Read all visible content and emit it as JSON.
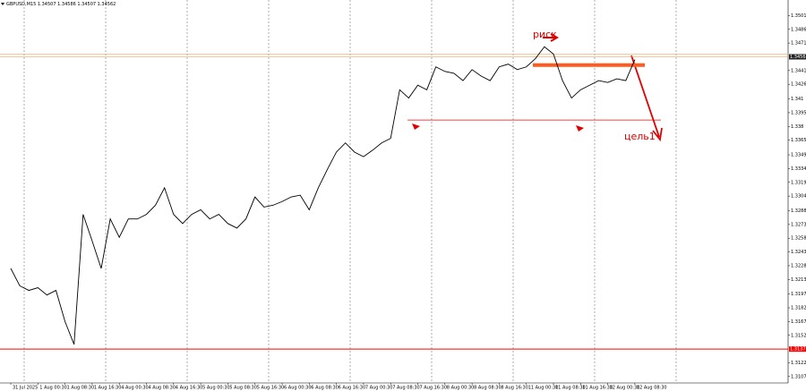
{
  "chart_data": {
    "type": "line",
    "title": "GBPUSD,M15  1.34507 1.34586 1.34507 1.34562",
    "categories": [
      "31 Jul 2025",
      null,
      null,
      "1 Aug 00:30",
      null,
      null,
      "1 Aug 08:30",
      null,
      null,
      "1 Aug 16:30",
      null,
      null,
      "4 Aug 00:30",
      null,
      null,
      "4 Aug 08:30",
      null,
      null,
      "4 Aug 16:30",
      null,
      null,
      "5 Aug 00:30",
      null,
      null,
      "5 Aug 08:30",
      null,
      null,
      "5 Aug 16:30",
      null,
      null,
      "6 Aug 00:30",
      null,
      null,
      "6 Aug 08:30",
      null,
      null,
      "6 Aug 16:30",
      null,
      null,
      "7 Aug 00:30",
      null,
      null,
      "7 Aug 08:30",
      null,
      null,
      "7 Aug 16:30",
      null,
      null,
      "8 Aug 00:30",
      null,
      null,
      "8 Aug 08:30",
      null,
      null,
      "8 Aug 16:30",
      null,
      null,
      "11 Aug 00:30",
      null,
      null,
      "11 Aug 08:30",
      null,
      null,
      "11 Aug 16:30",
      null,
      null,
      "12 Aug 00:30",
      null,
      null,
      "12 Aug 08:30"
    ],
    "values": [
      1.3225,
      1.3206,
      1.3201,
      1.3204,
      1.3196,
      1.3201,
      1.3167,
      1.3142,
      1.3284,
      1.3255,
      1.3225,
      1.3279,
      1.3259,
      1.3279,
      1.3279,
      1.3284,
      1.3294,
      1.3313,
      1.3284,
      1.3274,
      1.3284,
      1.3289,
      1.3279,
      1.3284,
      1.3274,
      1.3269,
      1.3279,
      1.3303,
      1.3292,
      1.3294,
      1.3298,
      1.3303,
      1.3305,
      1.3289,
      1.3313,
      1.3333,
      1.3352,
      1.3362,
      1.3352,
      1.3347,
      1.3354,
      1.3362,
      1.3367,
      1.342,
      1.3411,
      1.3425,
      1.342,
      1.3445,
      1.344,
      1.3438,
      1.343,
      1.3442,
      1.3435,
      1.343,
      1.3445,
      1.3448,
      1.3442,
      1.3445,
      1.3454,
      1.3467,
      1.3459,
      1.343,
      1.3411,
      1.342,
      1.3425,
      1.343,
      1.3428,
      1.3432,
      1.343,
      1.3453
    ],
    "color": "#000000",
    "ylim": [
      1.31,
      1.3518
    ],
    "yticks": [
      1.3501,
      1.3486,
      1.3471,
      1.3441,
      1.3426,
      1.341,
      1.3395,
      1.338,
      1.3365,
      1.3349,
      1.3334,
      1.3319,
      1.3304,
      1.3288,
      1.3273,
      1.3258,
      1.3243,
      1.3228,
      1.3213,
      1.3197,
      1.3182,
      1.3167,
      1.3152,
      1.3122,
      1.3107
    ],
    "grid": true,
    "levels": [
      {
        "value": 1.3137,
        "color": "#ff0000"
      },
      {
        "value": 1.3459,
        "color": "#f4a460"
      },
      {
        "value": 1.3456,
        "color": "#f4a460"
      },
      {
        "value": 1.3447,
        "color": "#ff5a1f"
      },
      {
        "value": 1.3387,
        "color": "#ff0000"
      }
    ],
    "annotations": [
      "риск",
      "цель1"
    ]
  }
}
